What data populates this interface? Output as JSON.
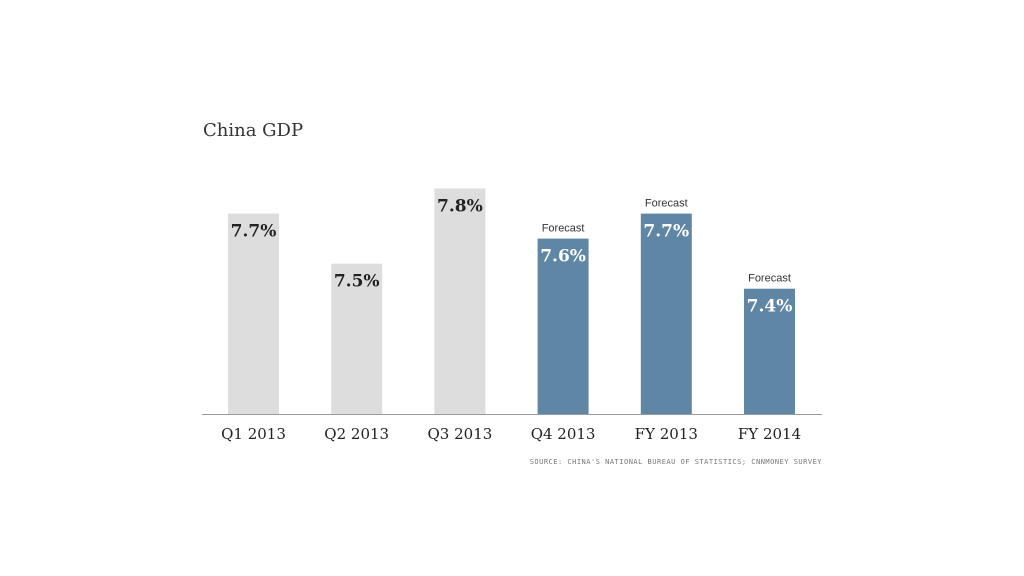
{
  "chart_data": {
    "type": "bar",
    "title": "China GDP",
    "categories": [
      "Q1 2013",
      "Q2 2013",
      "Q3 2013",
      "Q4 2013",
      "FY 2013",
      "FY 2014"
    ],
    "values": [
      7.7,
      7.5,
      7.8,
      7.6,
      7.7,
      7.4
    ],
    "value_labels": [
      "7.7%",
      "7.5%",
      "7.8%",
      "7.6%",
      "7.7%",
      "7.4%"
    ],
    "forecast": [
      false,
      false,
      false,
      true,
      true,
      true
    ],
    "forecast_label": "Forecast",
    "ylim": [
      6.9,
      7.87
    ],
    "grid": false,
    "source": "SOURCE: CHINA'S NATIONAL BUREAU OF STATISTICS; CNNMONEY SURVEY",
    "colors": {
      "actual_bar": "#dddddd",
      "forecast_bar": "#5f86a5",
      "actual_value_text": "#222222",
      "forecast_value_text": "#ffffff",
      "axis": "#999999"
    }
  }
}
